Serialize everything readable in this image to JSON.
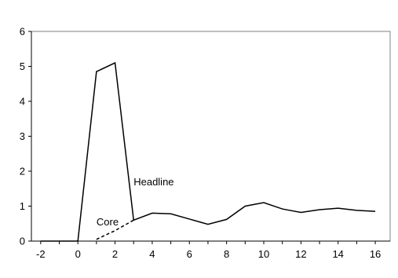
{
  "chart_data": {
    "type": "line",
    "title": "",
    "xlabel": "",
    "ylabel": "",
    "xlim": [
      -2.5,
      16.8
    ],
    "ylim": [
      0,
      6
    ],
    "x_ticks": [
      -2,
      0,
      2,
      4,
      6,
      8,
      10,
      12,
      14,
      16
    ],
    "y_ticks": [
      0,
      1,
      2,
      3,
      4,
      5,
      6
    ],
    "grid": false,
    "legend": "none",
    "series": [
      {
        "name": "Headline",
        "style": "solid",
        "color": "#000000",
        "points": [
          [
            -2,
            0
          ],
          [
            -1,
            0
          ],
          [
            0,
            0
          ],
          [
            1,
            4.85
          ],
          [
            2,
            5.1
          ],
          [
            3,
            0.6
          ],
          [
            4,
            0.8
          ],
          [
            5,
            0.78
          ],
          [
            6,
            0.63
          ],
          [
            7,
            0.48
          ],
          [
            8,
            0.62
          ],
          [
            9,
            1.0
          ],
          [
            10,
            1.1
          ],
          [
            11,
            0.92
          ],
          [
            12,
            0.82
          ],
          [
            13,
            0.9
          ],
          [
            14,
            0.94
          ],
          [
            15,
            0.88
          ],
          [
            16,
            0.85
          ]
        ]
      },
      {
        "name": "Core",
        "style": "dashed",
        "color": "#000000",
        "points": [
          [
            1,
            0.05
          ],
          [
            2,
            0.3
          ],
          [
            3,
            0.6
          ]
        ]
      }
    ],
    "annotations": [
      {
        "text": "Headline",
        "x": 3.0,
        "y": 1.6
      },
      {
        "text": "Core",
        "x": 1.0,
        "y": 0.45
      }
    ]
  }
}
